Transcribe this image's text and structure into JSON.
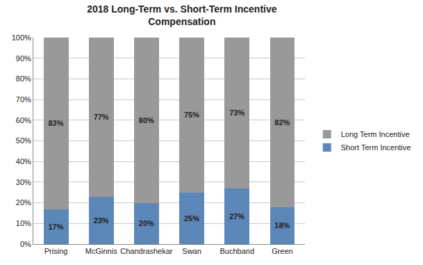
{
  "chart_data": {
    "type": "bar",
    "title": "2018 Long-Term vs. Short-Term Incentive Compensation",
    "categories": [
      "Prising",
      "McGinnis",
      "Chandrashekar",
      "Swan",
      "Buchband",
      "Green"
    ],
    "series": [
      {
        "name": "Short Term Incentive",
        "color": "#5b87b9",
        "values": [
          17,
          23,
          20,
          25,
          27,
          18
        ],
        "value_labels": [
          "17%",
          "23%",
          "20%",
          "25%",
          "27%",
          "18%"
        ]
      },
      {
        "name": "Long Term Incentive",
        "color": "#999999",
        "values": [
          83,
          77,
          80,
          75,
          73,
          82
        ],
        "value_labels": [
          "83%",
          "77%",
          "80%",
          "75%",
          "73%",
          "82%"
        ]
      }
    ],
    "stacked": true,
    "data_labels": true,
    "grid": true,
    "legend": "right",
    "ylim": [
      0,
      100
    ],
    "yticks": [
      {
        "value": 0,
        "label": "0%"
      },
      {
        "value": 10,
        "label": "10%"
      },
      {
        "value": 20,
        "label": "20%"
      },
      {
        "value": 30,
        "label": "30%"
      },
      {
        "value": 40,
        "label": "40%"
      },
      {
        "value": 50,
        "label": "50%"
      },
      {
        "value": 60,
        "label": "60%"
      },
      {
        "value": 70,
        "label": "70%"
      },
      {
        "value": 80,
        "label": "80%"
      },
      {
        "value": 90,
        "label": "90%"
      },
      {
        "value": 100,
        "label": "100%"
      }
    ]
  }
}
